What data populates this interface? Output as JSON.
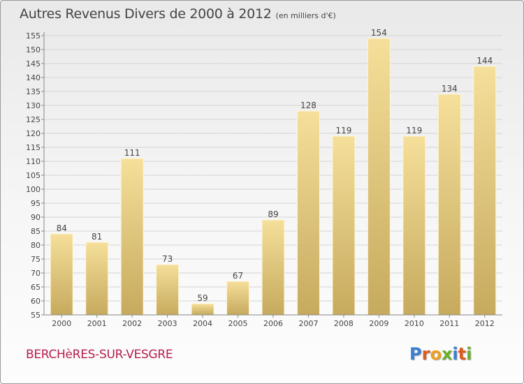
{
  "header": {
    "title": "Autres Revenus Divers de 2000 à 2012",
    "unit": "(en milliers d'€)"
  },
  "footer": {
    "commune": "BERCHèRES-SUR-VESGRE",
    "logo": "Proxiti"
  },
  "colors": {
    "bar_top": "#f5df9a",
    "bar_bottom": "#c6aa5e",
    "commune_text": "#b81d4b",
    "logo_letters": [
      "#3a7fd0",
      "#e05a1a",
      "#f0a020",
      "#6ab02a",
      "#3a7fd0",
      "#e05a1a",
      "#6ab02a"
    ]
  },
  "chart_data": {
    "type": "bar",
    "title": "Autres Revenus Divers de 2000 à 2012",
    "subtitle": "(en milliers d'€)",
    "categories": [
      "2000",
      "2001",
      "2002",
      "2003",
      "2004",
      "2005",
      "2006",
      "2007",
      "2008",
      "2009",
      "2010",
      "2011",
      "2012"
    ],
    "values": [
      84,
      81,
      111,
      73,
      59,
      67,
      89,
      128,
      119,
      154,
      119,
      134,
      144
    ],
    "ylim": [
      55,
      155
    ],
    "yticks": [
      55,
      60,
      65,
      70,
      75,
      80,
      85,
      90,
      95,
      100,
      105,
      110,
      115,
      120,
      125,
      130,
      135,
      140,
      145,
      150,
      155
    ],
    "grid": true,
    "data_labels": true,
    "legend": "none"
  }
}
